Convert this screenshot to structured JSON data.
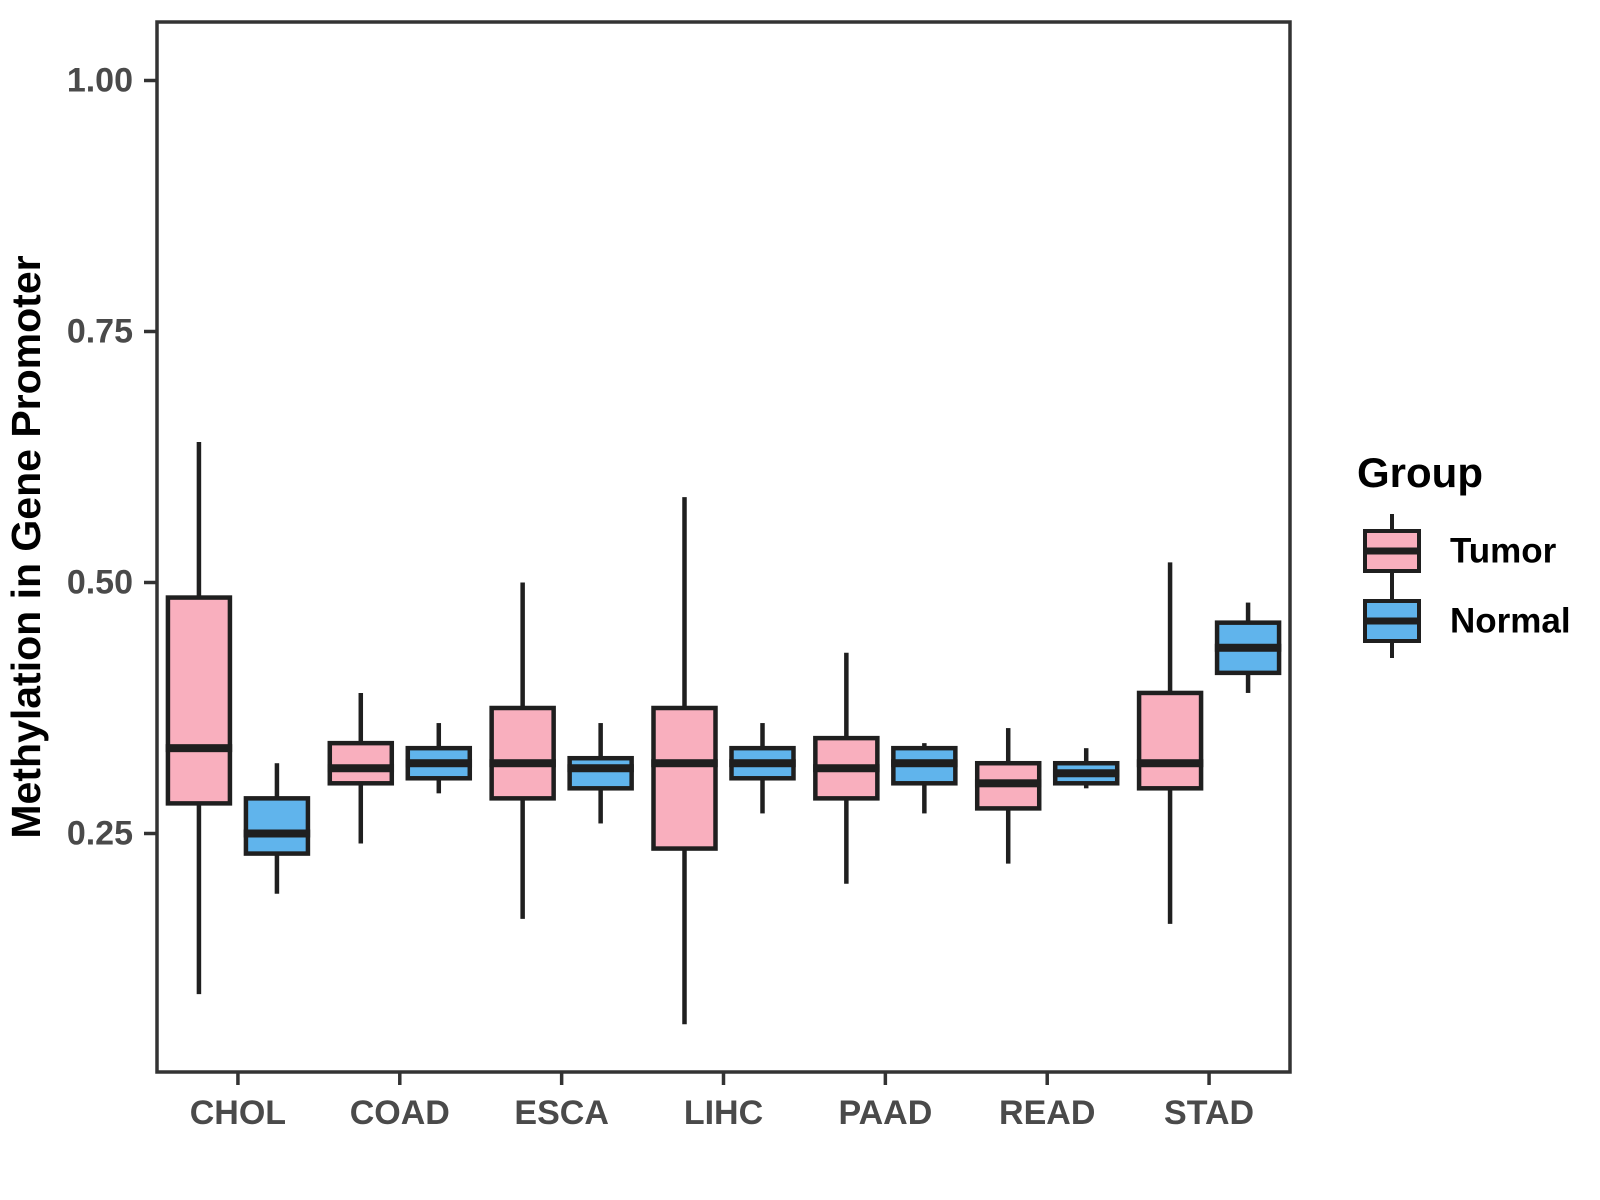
{
  "y_axis": {
    "label": "Methylation in Gene Promoter",
    "ticks": [
      {
        "value": 1.0,
        "label": "1.00"
      },
      {
        "value": 0.75,
        "label": "0.75"
      },
      {
        "value": 0.5,
        "label": "0.50"
      },
      {
        "value": 0.25,
        "label": "0.25"
      }
    ]
  },
  "x_axis": {
    "categories": [
      "CHOL",
      "COAD",
      "ESCA",
      "LIHC",
      "PAAD",
      "READ",
      "STAD"
    ]
  },
  "legend": {
    "title": "Group",
    "entries": [
      {
        "label": "Tumor",
        "fill": "#F9AFBE"
      },
      {
        "label": "Normal",
        "fill": "#60B4EC"
      }
    ]
  },
  "colors": {
    "tumor_fill": "#F9AFBE",
    "normal_fill": "#60B4EC",
    "box_border": "#1F1F1F",
    "axis_text": "#4A4A4A",
    "axis_line": "#333333",
    "title_text": "#000000"
  },
  "chart_data": {
    "type": "boxplot",
    "title": "",
    "xlabel": "",
    "ylabel": "Methylation in Gene Promoter",
    "ylim": [
      0.0,
      1.06
    ],
    "yticks": [
      0.25,
      0.5,
      0.75,
      1.0
    ],
    "grid": false,
    "legend_position": "right",
    "categories": [
      "CHOL",
      "COAD",
      "ESCA",
      "LIHC",
      "PAAD",
      "READ",
      "STAD"
    ],
    "series": [
      {
        "name": "Tumor",
        "fill": "#F9AFBE",
        "boxes": [
          {
            "low": 0.09,
            "q1": 0.28,
            "median": 0.335,
            "q3": 0.485,
            "high": 0.64
          },
          {
            "low": 0.24,
            "q1": 0.3,
            "median": 0.315,
            "q3": 0.34,
            "high": 0.39
          },
          {
            "low": 0.165,
            "q1": 0.285,
            "median": 0.32,
            "q3": 0.375,
            "high": 0.5
          },
          {
            "low": 0.06,
            "q1": 0.235,
            "median": 0.32,
            "q3": 0.375,
            "high": 0.585
          },
          {
            "low": 0.2,
            "q1": 0.285,
            "median": 0.315,
            "q3": 0.345,
            "high": 0.43
          },
          {
            "low": 0.22,
            "q1": 0.275,
            "median": 0.3,
            "q3": 0.32,
            "high": 0.355
          },
          {
            "low": 0.16,
            "q1": 0.295,
            "median": 0.32,
            "q3": 0.39,
            "high": 0.52
          }
        ]
      },
      {
        "name": "Normal",
        "fill": "#60B4EC",
        "boxes": [
          {
            "low": 0.19,
            "q1": 0.23,
            "median": 0.25,
            "q3": 0.285,
            "high": 0.32
          },
          {
            "low": 0.29,
            "q1": 0.305,
            "median": 0.32,
            "q3": 0.335,
            "high": 0.36
          },
          {
            "low": 0.26,
            "q1": 0.295,
            "median": 0.315,
            "q3": 0.325,
            "high": 0.36
          },
          {
            "low": 0.27,
            "q1": 0.305,
            "median": 0.32,
            "q3": 0.335,
            "high": 0.36
          },
          {
            "low": 0.27,
            "q1": 0.3,
            "median": 0.32,
            "q3": 0.335,
            "high": 0.34
          },
          {
            "low": 0.295,
            "q1": 0.3,
            "median": 0.31,
            "q3": 0.32,
            "high": 0.335
          },
          {
            "low": 0.39,
            "q1": 0.41,
            "median": 0.435,
            "q3": 0.46,
            "high": 0.48
          }
        ]
      }
    ]
  }
}
